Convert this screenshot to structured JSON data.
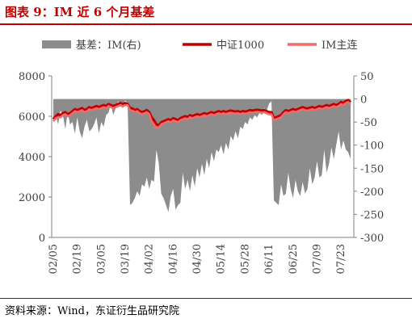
{
  "title": "图表 9：IM 近 6 个月基差",
  "source": "资料来源：Wind，东证衍生品研究院",
  "chart_data": {
    "type": "line+area",
    "x_labels": [
      "02/05",
      "02/19",
      "03/05",
      "03/19",
      "04/02",
      "04/16",
      "04/30",
      "05/14",
      "05/28",
      "06/11",
      "06/25",
      "07/09",
      "07/23"
    ],
    "left_axis": {
      "ylim": [
        0,
        8000
      ],
      "ticks": [
        0,
        2000,
        4000,
        6000,
        8000
      ]
    },
    "right_axis": {
      "ylim": [
        -300,
        50
      ],
      "ticks": [
        50,
        0,
        -50,
        -100,
        -150,
        -200,
        -250,
        -300
      ]
    },
    "legend_position": "top",
    "colors": {
      "basis": "#8c8c8c",
      "csi1000": "#c00000",
      "im": "#f06b6b"
    },
    "series": [
      {
        "name": "基差：IM(右)",
        "axis": "right",
        "kind": "area",
        "values": [
          -40,
          -35,
          -55,
          -25,
          -35,
          -65,
          -30,
          -55,
          -50,
          -75,
          -40,
          -70,
          -85,
          -60,
          -45,
          -70,
          -65,
          -55,
          -40,
          -75,
          -50,
          -60,
          -35,
          -30,
          -10,
          -35,
          -20,
          -5,
          -15,
          -20,
          -3,
          -10,
          -230,
          -225,
          -215,
          -200,
          -210,
          -185,
          -190,
          -170,
          -195,
          -175,
          -180,
          -110,
          -140,
          -205,
          -215,
          -230,
          -245,
          -210,
          -195,
          -240,
          -230,
          -225,
          -160,
          -195,
          -175,
          -200,
          -165,
          -190,
          -150,
          -170,
          -140,
          -165,
          -130,
          -150,
          -115,
          -135,
          -110,
          -115,
          -100,
          -120,
          -95,
          -110,
          -80,
          -90,
          -70,
          -85,
          -60,
          -65,
          -50,
          -55,
          -40,
          -45,
          -35,
          -40,
          -30,
          -35,
          -20,
          -25,
          -10,
          -5,
          -220,
          -225,
          -230,
          -185,
          -210,
          -205,
          -160,
          -195,
          -215,
          -175,
          -200,
          -210,
          -180,
          -205,
          -195,
          -150,
          -185,
          -170,
          -135,
          -170,
          -165,
          -110,
          -160,
          -140,
          -105,
          -130,
          -100,
          -70,
          -110,
          -90,
          -110,
          -115,
          -130
        ]
      },
      {
        "name": "中证1000",
        "axis": "left",
        "kind": "line",
        "values": [
          5850,
          6000,
          6100,
          6050,
          6150,
          6200,
          6100,
          6150,
          6250,
          6350,
          6300,
          6350,
          6400,
          6300,
          6350,
          6450,
          6400,
          6450,
          6500,
          6450,
          6500,
          6550,
          6500,
          6600,
          6550,
          6500,
          6550,
          6600,
          6650,
          6600,
          6650,
          6600,
          6400,
          6380,
          6300,
          6350,
          6250,
          6200,
          6250,
          6300,
          6200,
          5950,
          5800,
          5600,
          5550,
          5700,
          5750,
          5800,
          5850,
          5800,
          5900,
          5850,
          5800,
          5900,
          5950,
          6000,
          5950,
          6050,
          6000,
          6050,
          6100,
          6050,
          6100,
          6150,
          6100,
          6150,
          6200,
          6150,
          6200,
          6250,
          6200,
          6250,
          6200,
          6250,
          6280,
          6250,
          6230,
          6250,
          6200,
          6250,
          6230,
          6250,
          6300,
          6280,
          6300,
          6320,
          6300,
          6280,
          6300,
          6250,
          6200,
          6200,
          5900,
          5950,
          6000,
          6050,
          6200,
          6300,
          6250,
          6300,
          6350,
          6300,
          6350,
          6400,
          6450,
          6400,
          6380,
          6420,
          6450,
          6400,
          6450,
          6500,
          6450,
          6500,
          6550,
          6500,
          6550,
          6600,
          6550,
          6600,
          6700,
          6650,
          6750,
          6800,
          6700
        ]
      },
      {
        "name": "IM主连",
        "axis": "left",
        "kind": "line",
        "values": [
          5750,
          5900,
          5950,
          5950,
          6050,
          6100,
          6000,
          6050,
          6150,
          6250,
          6200,
          6250,
          6300,
          6200,
          6250,
          6350,
          6300,
          6350,
          6400,
          6350,
          6400,
          6450,
          6400,
          6500,
          6450,
          6400,
          6450,
          6500,
          6550,
          6500,
          6550,
          6550,
          6300,
          6280,
          6200,
          6250,
          6150,
          6100,
          6150,
          6200,
          6100,
          5750,
          5600,
          5400,
          5450,
          5600,
          5650,
          5700,
          5750,
          5700,
          5800,
          5750,
          5700,
          5800,
          5850,
          5900,
          5850,
          5950,
          5900,
          5950,
          6000,
          5950,
          6000,
          6050,
          6000,
          6050,
          6100,
          6050,
          6100,
          6150,
          6100,
          6150,
          6100,
          6150,
          6180,
          6150,
          6130,
          6150,
          6100,
          6150,
          6130,
          6150,
          6200,
          6180,
          6200,
          6220,
          6200,
          6180,
          6200,
          6150,
          6100,
          6100,
          5800,
          5850,
          5900,
          5950,
          6100,
          6200,
          6150,
          6200,
          6250,
          6200,
          6250,
          6300,
          6350,
          6300,
          6280,
          6320,
          6350,
          6300,
          6350,
          6400,
          6350,
          6400,
          6450,
          6400,
          6450,
          6500,
          6450,
          6500,
          6600,
          6550,
          6650,
          6700,
          6600
        ]
      }
    ]
  }
}
